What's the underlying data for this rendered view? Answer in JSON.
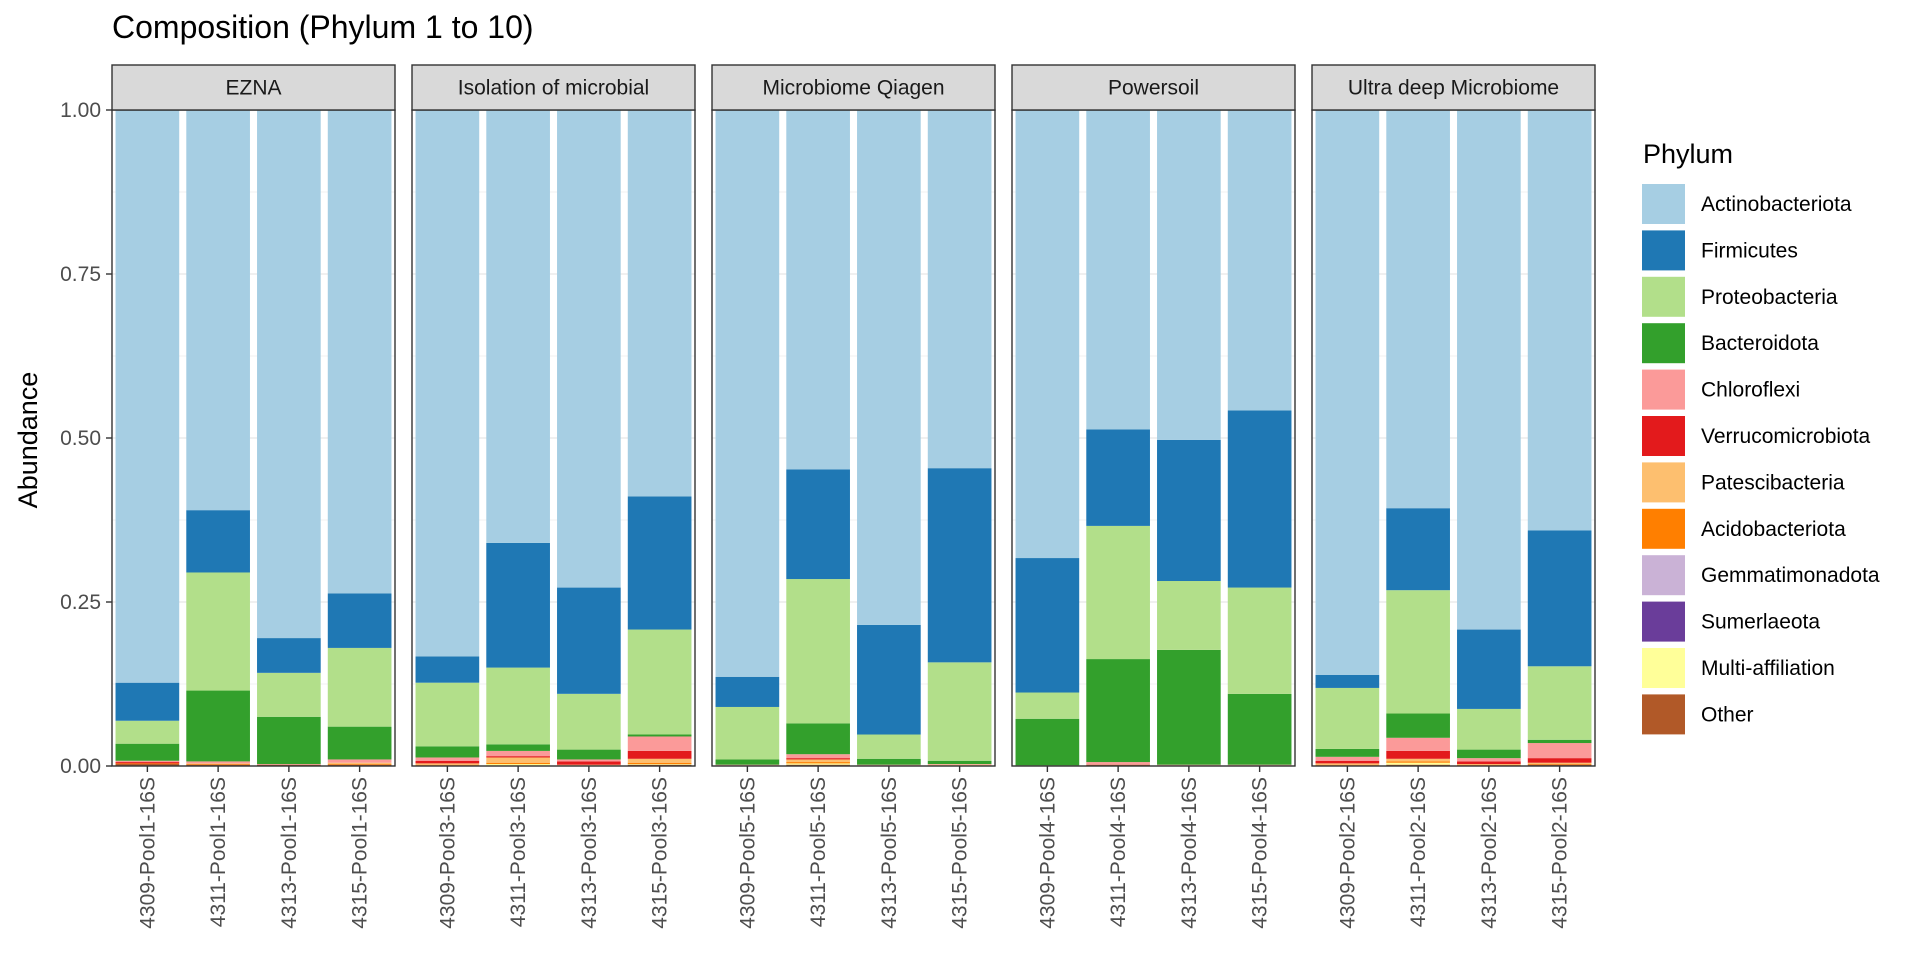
{
  "chart_data": {
    "type": "bar",
    "stacked": true,
    "title": "Composition (Phylum 1 to 10)",
    "ylabel": "Abundance",
    "xlabel": "",
    "ylim": [
      0,
      1
    ],
    "yticks": [
      "0.00",
      "0.25",
      "0.50",
      "0.75",
      "1.00"
    ],
    "grid": true,
    "legend": {
      "title": "Phylum",
      "position": "right",
      "entries": [
        {
          "name": "Actinobacteriota",
          "color": "#A6CEE3"
        },
        {
          "name": "Firmicutes",
          "color": "#1F78B4"
        },
        {
          "name": "Proteobacteria",
          "color": "#B2DF8A"
        },
        {
          "name": "Bacteroidota",
          "color": "#33A02C"
        },
        {
          "name": "Chloroflexi",
          "color": "#FB9A99"
        },
        {
          "name": "Verrucomicrobiota",
          "color": "#E31A1C"
        },
        {
          "name": "Patescibacteria",
          "color": "#FDBF6F"
        },
        {
          "name": "Acidobacteriota",
          "color": "#FF7F00"
        },
        {
          "name": "Gemmatimonadota",
          "color": "#CAB2D6"
        },
        {
          "name": "Sumerlaeota",
          "color": "#6A3D9A"
        },
        {
          "name": "Multi-affiliation",
          "color": "#FFFF99"
        },
        {
          "name": "Other",
          "color": "#B15928"
        }
      ]
    },
    "panels": [
      {
        "name": "EZNA",
        "samples": [
          {
            "label": "4309-Pool1-16S",
            "values": {
              "Actinobacteriota": 0.873,
              "Firmicutes": 0.058,
              "Proteobacteria": 0.035,
              "Bacteroidota": 0.026,
              "Chloroflexi": 0.002,
              "Verrucomicrobiota": 0.002,
              "Patescibacteria": 0.0,
              "Acidobacteriota": 0.001,
              "Gemmatimonadota": 0.0,
              "Sumerlaeota": 0.0,
              "Multi-affiliation": 0.0,
              "Other": 0.003
            }
          },
          {
            "label": "4311-Pool1-16S",
            "values": {
              "Actinobacteriota": 0.61,
              "Firmicutes": 0.095,
              "Proteobacteria": 0.18,
              "Bacteroidota": 0.108,
              "Chloroflexi": 0.003,
              "Verrucomicrobiota": 0.0,
              "Patescibacteria": 0.001,
              "Acidobacteriota": 0.001,
              "Gemmatimonadota": 0.0,
              "Sumerlaeota": 0.0,
              "Multi-affiliation": 0.0,
              "Other": 0.002
            }
          },
          {
            "label": "4313-Pool1-16S",
            "values": {
              "Actinobacteriota": 0.805,
              "Firmicutes": 0.053,
              "Proteobacteria": 0.067,
              "Bacteroidota": 0.072,
              "Chloroflexi": 0.001,
              "Verrucomicrobiota": 0.0,
              "Patescibacteria": 0.0,
              "Acidobacteriota": 0.0,
              "Gemmatimonadota": 0.0,
              "Sumerlaeota": 0.0,
              "Multi-affiliation": 0.0,
              "Other": 0.002
            }
          },
          {
            "label": "4315-Pool1-16S",
            "values": {
              "Actinobacteriota": 0.737,
              "Firmicutes": 0.083,
              "Proteobacteria": 0.12,
              "Bacteroidota": 0.05,
              "Chloroflexi": 0.005,
              "Verrucomicrobiota": 0.0,
              "Patescibacteria": 0.002,
              "Acidobacteriota": 0.001,
              "Gemmatimonadota": 0.0,
              "Sumerlaeota": 0.0,
              "Multi-affiliation": 0.0,
              "Other": 0.002
            }
          }
        ]
      },
      {
        "name": "Isolation of microbial",
        "samples": [
          {
            "label": "4309-Pool3-16S",
            "values": {
              "Actinobacteriota": 0.833,
              "Firmicutes": 0.04,
              "Proteobacteria": 0.097,
              "Bacteroidota": 0.017,
              "Chloroflexi": 0.005,
              "Verrucomicrobiota": 0.004,
              "Patescibacteria": 0.002,
              "Acidobacteriota": 0.001,
              "Gemmatimonadota": 0.0,
              "Sumerlaeota": 0.0,
              "Multi-affiliation": 0.0,
              "Other": 0.001
            }
          },
          {
            "label": "4311-Pool3-16S",
            "values": {
              "Actinobacteriota": 0.66,
              "Firmicutes": 0.19,
              "Proteobacteria": 0.117,
              "Bacteroidota": 0.01,
              "Chloroflexi": 0.008,
              "Verrucomicrobiota": 0.002,
              "Patescibacteria": 0.008,
              "Acidobacteriota": 0.002,
              "Gemmatimonadota": 0.0,
              "Sumerlaeota": 0.0,
              "Multi-affiliation": 0.002,
              "Other": 0.001
            }
          },
          {
            "label": "4313-Pool3-16S",
            "values": {
              "Actinobacteriota": 0.728,
              "Firmicutes": 0.162,
              "Proteobacteria": 0.085,
              "Bacteroidota": 0.015,
              "Chloroflexi": 0.003,
              "Verrucomicrobiota": 0.005,
              "Patescibacteria": 0.001,
              "Acidobacteriota": 0.0,
              "Gemmatimonadota": 0.0,
              "Sumerlaeota": 0.0,
              "Multi-affiliation": 0.0,
              "Other": 0.001
            }
          },
          {
            "label": "4315-Pool3-16S",
            "values": {
              "Actinobacteriota": 0.589,
              "Firmicutes": 0.203,
              "Proteobacteria": 0.16,
              "Bacteroidota": 0.003,
              "Chloroflexi": 0.022,
              "Verrucomicrobiota": 0.012,
              "Patescibacteria": 0.006,
              "Acidobacteriota": 0.002,
              "Gemmatimonadota": 0.0,
              "Sumerlaeota": 0.0,
              "Multi-affiliation": 0.001,
              "Other": 0.002
            }
          }
        ]
      },
      {
        "name": "Microbiome Qiagen",
        "samples": [
          {
            "label": "4309-Pool5-16S",
            "values": {
              "Actinobacteriota": 0.864,
              "Firmicutes": 0.046,
              "Proteobacteria": 0.08,
              "Bacteroidota": 0.008,
              "Chloroflexi": 0.001,
              "Verrucomicrobiota": 0.0,
              "Patescibacteria": 0.0,
              "Acidobacteriota": 0.0,
              "Gemmatimonadota": 0.0,
              "Sumerlaeota": 0.0,
              "Multi-affiliation": 0.0,
              "Other": 0.001
            }
          },
          {
            "label": "4311-Pool5-16S",
            "values": {
              "Actinobacteriota": 0.548,
              "Firmicutes": 0.167,
              "Proteobacteria": 0.22,
              "Bacteroidota": 0.047,
              "Chloroflexi": 0.006,
              "Verrucomicrobiota": 0.002,
              "Patescibacteria": 0.004,
              "Acidobacteriota": 0.002,
              "Gemmatimonadota": 0.0,
              "Sumerlaeota": 0.0,
              "Multi-affiliation": 0.002,
              "Other": 0.002
            }
          },
          {
            "label": "4313-Pool5-16S",
            "values": {
              "Actinobacteriota": 0.785,
              "Firmicutes": 0.167,
              "Proteobacteria": 0.037,
              "Bacteroidota": 0.009,
              "Chloroflexi": 0.001,
              "Verrucomicrobiota": 0.0,
              "Patescibacteria": 0.0,
              "Acidobacteriota": 0.0,
              "Gemmatimonadota": 0.0,
              "Sumerlaeota": 0.0,
              "Multi-affiliation": 0.0,
              "Other": 0.001
            }
          },
          {
            "label": "4315-Pool5-16S",
            "values": {
              "Actinobacteriota": 0.546,
              "Firmicutes": 0.296,
              "Proteobacteria": 0.15,
              "Bacteroidota": 0.005,
              "Chloroflexi": 0.001,
              "Verrucomicrobiota": 0.0,
              "Patescibacteria": 0.001,
              "Acidobacteriota": 0.0,
              "Gemmatimonadota": 0.0,
              "Sumerlaeota": 0.0,
              "Multi-affiliation": 0.0,
              "Other": 0.001
            }
          }
        ]
      },
      {
        "name": "Powersoil",
        "samples": [
          {
            "label": "4309-Pool4-16S",
            "values": {
              "Actinobacteriota": 0.683,
              "Firmicutes": 0.205,
              "Proteobacteria": 0.04,
              "Bacteroidota": 0.071,
              "Chloroflexi": 0.0,
              "Verrucomicrobiota": 0.0,
              "Patescibacteria": 0.0,
              "Acidobacteriota": 0.0,
              "Gemmatimonadota": 0.0,
              "Sumerlaeota": 0.0,
              "Multi-affiliation": 0.0,
              "Other": 0.001
            }
          },
          {
            "label": "4311-Pool4-16S",
            "values": {
              "Actinobacteriota": 0.487,
              "Firmicutes": 0.147,
              "Proteobacteria": 0.203,
              "Bacteroidota": 0.157,
              "Chloroflexi": 0.004,
              "Verrucomicrobiota": 0.0,
              "Patescibacteria": 0.0,
              "Acidobacteriota": 0.0,
              "Gemmatimonadota": 0.0,
              "Sumerlaeota": 0.0,
              "Multi-affiliation": 0.0,
              "Other": 0.002
            }
          },
          {
            "label": "4313-Pool4-16S",
            "values": {
              "Actinobacteriota": 0.503,
              "Firmicutes": 0.215,
              "Proteobacteria": 0.105,
              "Bacteroidota": 0.175,
              "Chloroflexi": 0.001,
              "Verrucomicrobiota": 0.0,
              "Patescibacteria": 0.0,
              "Acidobacteriota": 0.0,
              "Gemmatimonadota": 0.0,
              "Sumerlaeota": 0.0,
              "Multi-affiliation": 0.0,
              "Other": 0.001
            }
          },
          {
            "label": "4315-Pool4-16S",
            "values": {
              "Actinobacteriota": 0.458,
              "Firmicutes": 0.27,
              "Proteobacteria": 0.162,
              "Bacteroidota": 0.108,
              "Chloroflexi": 0.001,
              "Verrucomicrobiota": 0.0,
              "Patescibacteria": 0.0,
              "Acidobacteriota": 0.0,
              "Gemmatimonadota": 0.0,
              "Sumerlaeota": 0.0,
              "Multi-affiliation": 0.0,
              "Other": 0.001
            }
          }
        ]
      },
      {
        "name": "Ultra deep Microbiome",
        "samples": [
          {
            "label": "4309-Pool2-16S",
            "values": {
              "Actinobacteriota": 0.861,
              "Firmicutes": 0.02,
              "Proteobacteria": 0.093,
              "Bacteroidota": 0.012,
              "Chloroflexi": 0.006,
              "Verrucomicrobiota": 0.004,
              "Patescibacteria": 0.002,
              "Acidobacteriota": 0.001,
              "Gemmatimonadota": 0.0,
              "Sumerlaeota": 0.0,
              "Multi-affiliation": 0.0,
              "Other": 0.001
            }
          },
          {
            "label": "4311-Pool2-16S",
            "values": {
              "Actinobacteriota": 0.607,
              "Firmicutes": 0.125,
              "Proteobacteria": 0.188,
              "Bacteroidota": 0.037,
              "Chloroflexi": 0.02,
              "Verrucomicrobiota": 0.012,
              "Patescibacteria": 0.004,
              "Acidobacteriota": 0.002,
              "Gemmatimonadota": 0.0,
              "Sumerlaeota": 0.0,
              "Multi-affiliation": 0.003,
              "Other": 0.002
            }
          },
          {
            "label": "4313-Pool2-16S",
            "values": {
              "Actinobacteriota": 0.792,
              "Firmicutes": 0.121,
              "Proteobacteria": 0.062,
              "Bacteroidota": 0.013,
              "Chloroflexi": 0.005,
              "Verrucomicrobiota": 0.004,
              "Patescibacteria": 0.001,
              "Acidobacteriota": 0.001,
              "Gemmatimonadota": 0.0,
              "Sumerlaeota": 0.0,
              "Multi-affiliation": 0.0,
              "Other": 0.001
            }
          },
          {
            "label": "4315-Pool2-16S",
            "values": {
              "Actinobacteriota": 0.641,
              "Firmicutes": 0.207,
              "Proteobacteria": 0.112,
              "Bacteroidota": 0.005,
              "Chloroflexi": 0.023,
              "Verrucomicrobiota": 0.007,
              "Patescibacteria": 0.002,
              "Acidobacteriota": 0.001,
              "Gemmatimonadota": 0.0,
              "Sumerlaeota": 0.0,
              "Multi-affiliation": 0.0,
              "Other": 0.002
            }
          }
        ]
      }
    ]
  }
}
